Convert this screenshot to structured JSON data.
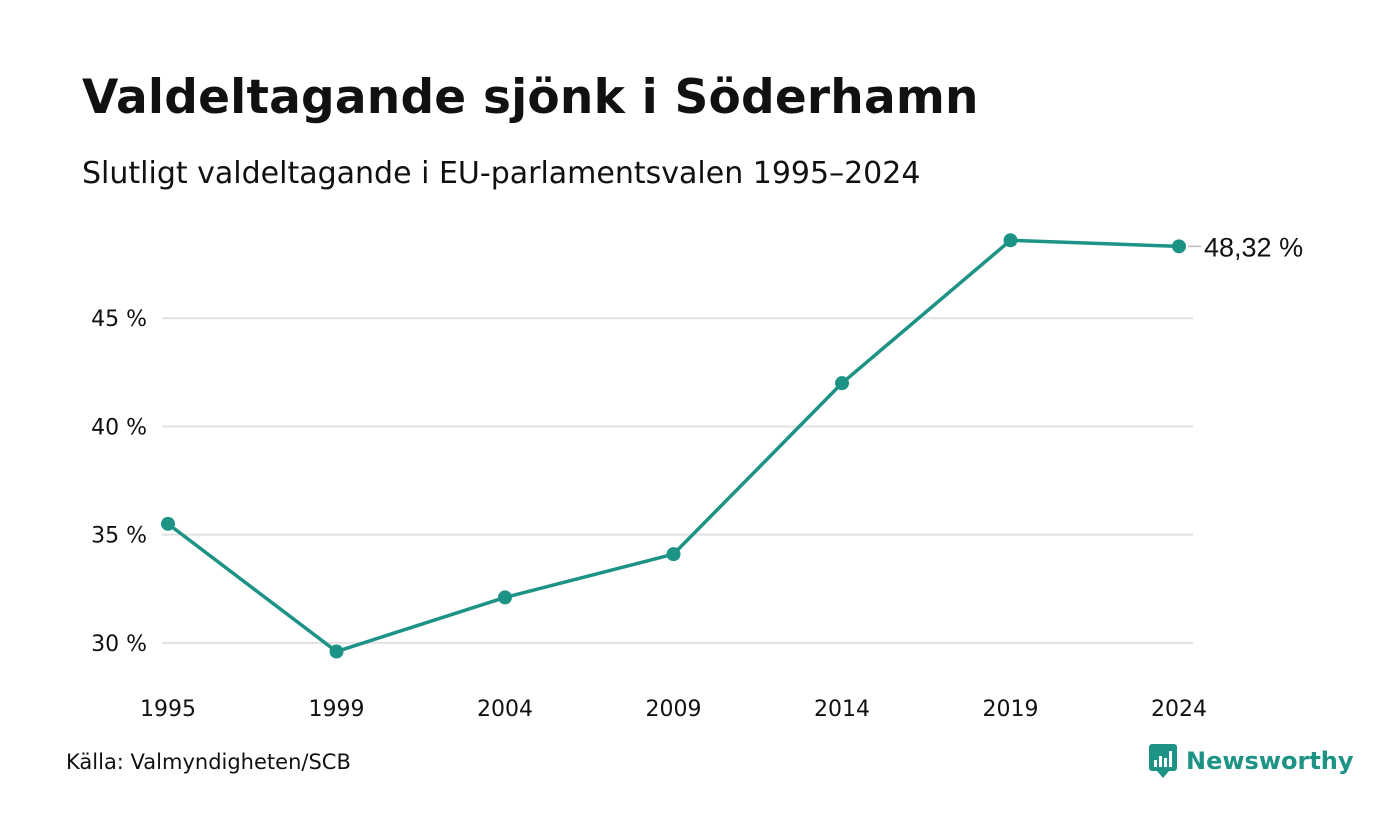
{
  "header": {
    "title": "Valdeltagande sjönk i Söderhamn",
    "subtitle": "Slutligt valdeltagande i EU-parlamentsvalen 1995–2024"
  },
  "footer": {
    "source": "Källa: Valmyndigheten/SCB",
    "brand": "Newsworthy",
    "brand_icon": "newsworthy-logo-icon"
  },
  "colors": {
    "line": "#1d9385",
    "grid": "#e1e1e1",
    "text": "#111111"
  },
  "chart_data": {
    "type": "line",
    "title": "Valdeltagande sjönk i Söderhamn",
    "subtitle": "Slutligt valdeltagande i EU-parlamentsvalen 1995–2024",
    "x": [
      "1995",
      "1999",
      "2004",
      "2009",
      "2014",
      "2019",
      "2024"
    ],
    "series": [
      {
        "values": [
          35.5,
          29.6,
          32.1,
          34.1,
          42.0,
          48.6,
          48.32
        ]
      }
    ],
    "ylim": [
      27.5,
      50
    ],
    "yticks": [
      30,
      35,
      40,
      45
    ],
    "ytick_labels": [
      "30 %",
      "35 %",
      "40 %",
      "45 %"
    ],
    "end_label": "48,32 %",
    "grid": true,
    "xlabel": "",
    "ylabel": ""
  }
}
